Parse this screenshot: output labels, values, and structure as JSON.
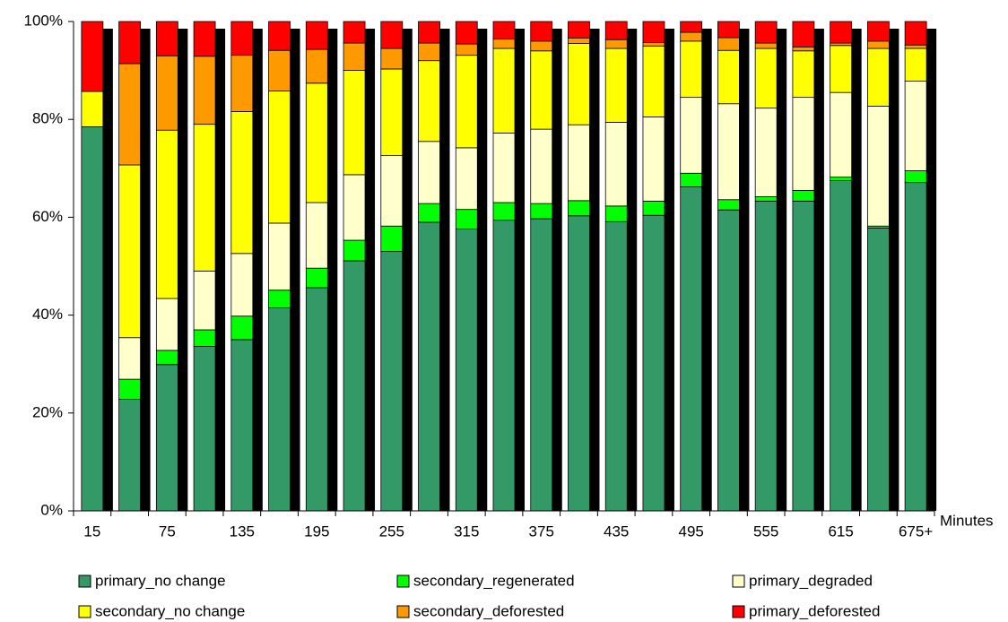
{
  "chart_data": {
    "type": "stacked_bar",
    "x_label": "Minutes",
    "categories": [
      "15",
      null,
      "75",
      null,
      "135",
      null,
      "195",
      null,
      "255",
      null,
      "315",
      null,
      "375",
      null,
      "435",
      null,
      "495",
      null,
      "555",
      null,
      "615",
      null,
      "675+"
    ],
    "series": [
      {
        "name": "primary_no change",
        "color": "#339966",
        "values": [
          78.5,
          22.8,
          29.9,
          33.6,
          35.0,
          41.5,
          45.6,
          51.1,
          53.0,
          59.0,
          57.6,
          59.4,
          59.7,
          60.3,
          59.1,
          60.4,
          66.2,
          61.5,
          63.3,
          63.3,
          67.5,
          57.8,
          67.1
        ]
      },
      {
        "name": "secondary_regenerated",
        "color": "#00ff00",
        "values": [
          0,
          4.1,
          2.9,
          3.4,
          4.8,
          3.6,
          4.0,
          4.2,
          5.2,
          3.8,
          4.0,
          3.6,
          3.1,
          3.1,
          3.2,
          2.9,
          2.8,
          2.1,
          0.9,
          2.2,
          0.7,
          0.4,
          2.4
        ]
      },
      {
        "name": "primary_degraded",
        "color": "#ffffcc",
        "values": [
          0,
          8.5,
          10.6,
          12.0,
          12.8,
          13.7,
          13.4,
          13.4,
          14.4,
          12.7,
          12.6,
          14.2,
          15.2,
          15.5,
          17.1,
          17.2,
          15.5,
          19.6,
          18.1,
          19.0,
          17.3,
          24.5,
          18.3
        ]
      },
      {
        "name": "secondary_no change",
        "color": "#ffff00",
        "values": [
          7.2,
          35.3,
          34.4,
          30.0,
          29.0,
          27.0,
          24.4,
          21.3,
          17.7,
          16.5,
          18.9,
          17.3,
          16.0,
          16.6,
          15.1,
          14.5,
          11.5,
          10.9,
          12.2,
          9.5,
          9.6,
          11.8,
          6.7
        ]
      },
      {
        "name": "secondary_deforested",
        "color": "#ff9900",
        "values": [
          0,
          20.7,
          15.2,
          13.9,
          11.5,
          8.3,
          6.9,
          5.6,
          4.2,
          3.6,
          2.3,
          1.9,
          2.0,
          1.1,
          1.8,
          0.7,
          1.8,
          2.6,
          1.1,
          0.8,
          0.5,
          1.5,
          0.7
        ]
      },
      {
        "name": "primary_deforested",
        "color": "#ff0000",
        "values": [
          14.3,
          8.6,
          7.0,
          7.1,
          6.9,
          5.9,
          5.7,
          4.4,
          5.5,
          4.4,
          4.6,
          3.6,
          4.0,
          3.4,
          3.7,
          4.3,
          2.2,
          3.3,
          4.4,
          5.2,
          4.4,
          4.0,
          4.8
        ]
      }
    ],
    "ylim": [
      0,
      100
    ],
    "yticks": [
      {
        "value": 0,
        "label": "0%"
      },
      {
        "value": 20,
        "label": "20%"
      },
      {
        "value": 40,
        "label": "40%"
      },
      {
        "value": 60,
        "label": "60%"
      },
      {
        "value": 80,
        "label": "80%"
      },
      {
        "value": 100,
        "label": "100%"
      }
    ],
    "grid": false
  }
}
